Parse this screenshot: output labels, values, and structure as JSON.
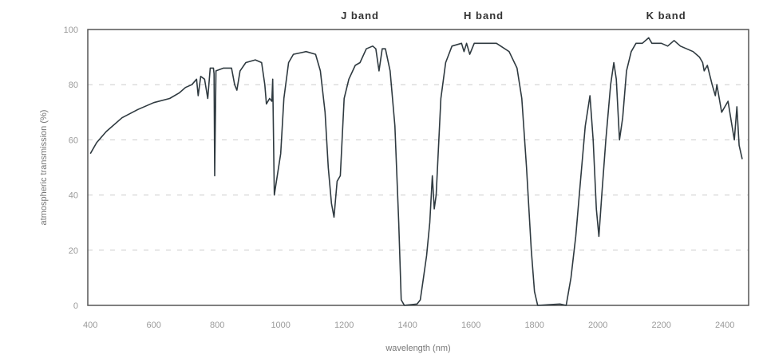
{
  "chart_data": {
    "type": "line",
    "title": "",
    "xlabel": "wavelength (nm)",
    "ylabel": "atmospheric transmission (%)",
    "xlim": [
      392,
      2475
    ],
    "ylim": [
      0,
      100
    ],
    "xticks": [
      400,
      600,
      800,
      1000,
      1200,
      1400,
      1600,
      1800,
      2000,
      2200,
      2400
    ],
    "yticks": [
      0,
      20,
      40,
      60,
      80,
      100
    ],
    "grid": "horizontal dashed",
    "line_color": "#2f3a40",
    "annotations": [
      {
        "text": "J band",
        "x": 1250
      },
      {
        "text": "H band",
        "x": 1640
      },
      {
        "text": "K band",
        "x": 2215
      }
    ],
    "series": [
      {
        "x": [
          400,
          420,
          450,
          500,
          550,
          600,
          650,
          680,
          700,
          720,
          735,
          740,
          748,
          760,
          770,
          778,
          788,
          790,
          792,
          796,
          820,
          845,
          855,
          862,
          872,
          890,
          920,
          940,
          950,
          955,
          965,
          972,
          975,
          980,
          988,
          1000,
          1010,
          1025,
          1040,
          1080,
          1110,
          1125,
          1140,
          1150,
          1160,
          1168,
          1178,
          1188,
          1200,
          1215,
          1235,
          1250,
          1270,
          1290,
          1300,
          1310,
          1320,
          1330,
          1345,
          1360,
          1372,
          1380,
          1390,
          1430,
          1440,
          1450,
          1460,
          1470,
          1478,
          1484,
          1490,
          1505,
          1520,
          1540,
          1570,
          1578,
          1586,
          1596,
          1610,
          1640,
          1680,
          1720,
          1745,
          1760,
          1775,
          1790,
          1800,
          1810,
          1880,
          1900,
          1915,
          1930,
          1945,
          1960,
          1975,
          1985,
          1995,
          2003,
          2012,
          2025,
          2040,
          2050,
          2058,
          2068,
          2078,
          2090,
          2105,
          2120,
          2140,
          2160,
          2170,
          2200,
          2220,
          2240,
          2260,
          2300,
          2320,
          2330,
          2335,
          2345,
          2360,
          2370,
          2375,
          2390,
          2410,
          2420,
          2430,
          2438,
          2445,
          2455
        ],
        "y": [
          55,
          59,
          63,
          68,
          71,
          73.5,
          75,
          77,
          79,
          80,
          82,
          76,
          83,
          82,
          75,
          86,
          86,
          84,
          47,
          85,
          86,
          86,
          80,
          78,
          85,
          88,
          89,
          88,
          80,
          73,
          75,
          74,
          82,
          40,
          46,
          55,
          75,
          88,
          91,
          92,
          91,
          85,
          70,
          50,
          37,
          32,
          45,
          47,
          75,
          82,
          87,
          88,
          93,
          94,
          93,
          85,
          93,
          93,
          85,
          65,
          30,
          2,
          0,
          0.5,
          2,
          10,
          18,
          30,
          47,
          35,
          40,
          75,
          88,
          94,
          95,
          92,
          95,
          91,
          95,
          95,
          95,
          92,
          86,
          75,
          50,
          20,
          5,
          0,
          0.5,
          0,
          10,
          25,
          45,
          65,
          76,
          60,
          35,
          25,
          40,
          60,
          80,
          88,
          82,
          60,
          68,
          85,
          92,
          95,
          95,
          97,
          95,
          95,
          94,
          96,
          94,
          92,
          90,
          88,
          85,
          87,
          80,
          76,
          80,
          70,
          74,
          67,
          60,
          72,
          58,
          53
        ]
      }
    ]
  }
}
